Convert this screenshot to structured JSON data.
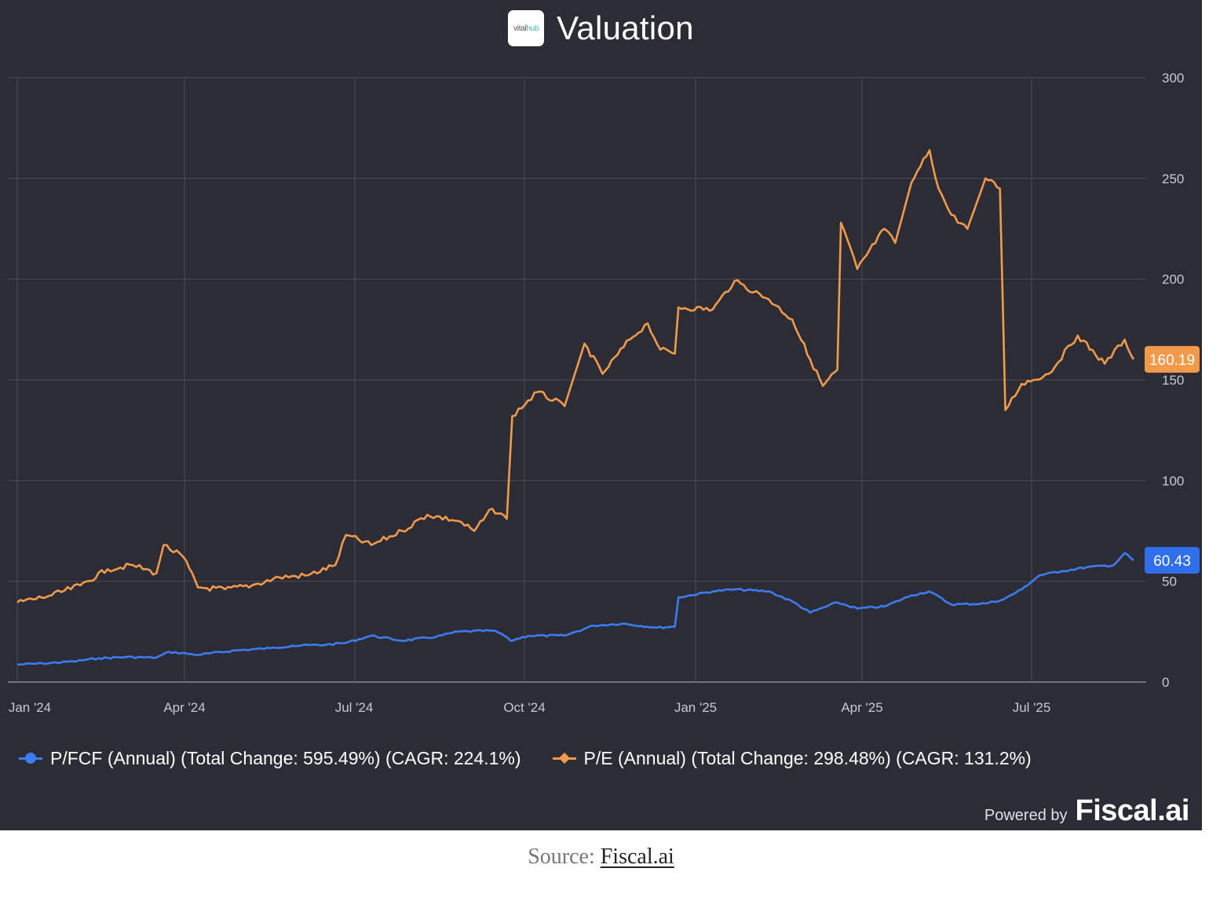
{
  "header": {
    "logo_text_a": "vital",
    "logo_text_b": "hub",
    "title": "Valuation"
  },
  "chart_data": {
    "type": "line",
    "title": "Valuation",
    "x_tick_labels": [
      "Jan '24",
      "Apr '24",
      "Jul '24",
      "Oct '24",
      "Jan '25",
      "Apr '25",
      "Jul '25"
    ],
    "y_tick_labels": [
      "0",
      "50",
      "100",
      "150",
      "200",
      "250",
      "300"
    ],
    "ylim": [
      0,
      300
    ],
    "y_axis_side": "right",
    "grid": true,
    "series": [
      {
        "name": "P/FCF (Annual) (Total Change: 595.49%) (CAGR: 224.1%)",
        "color": "#3d7bf0",
        "marker": "circle",
        "last_value_label": "60.43",
        "points": [
          [
            "2024-01-01",
            8.7
          ],
          [
            "2024-01-15",
            9.2
          ],
          [
            "2024-02-01",
            10.2
          ],
          [
            "2024-02-15",
            11.8
          ],
          [
            "2024-03-01",
            12.4
          ],
          [
            "2024-03-18",
            12.1
          ],
          [
            "2024-03-25",
            15.0
          ],
          [
            "2024-04-10",
            13.5
          ],
          [
            "2024-05-01",
            15.7
          ],
          [
            "2024-05-20",
            16.8
          ],
          [
            "2024-06-01",
            18.0
          ],
          [
            "2024-06-20",
            18.5
          ],
          [
            "2024-07-01",
            19.5
          ],
          [
            "2024-07-15",
            23.0
          ],
          [
            "2024-08-01",
            20.5
          ],
          [
            "2024-08-20",
            22.5
          ],
          [
            "2024-09-01",
            25.0
          ],
          [
            "2024-09-20",
            25.5
          ],
          [
            "2024-09-25",
            24.0
          ],
          [
            "2024-09-30",
            20.5
          ],
          [
            "2024-10-10",
            23.0
          ],
          [
            "2024-10-30",
            23.0
          ],
          [
            "2024-11-15",
            28.0
          ],
          [
            "2024-12-01",
            29.0
          ],
          [
            "2024-12-20",
            27.0
          ],
          [
            "2024-12-30",
            27.5
          ],
          [
            "2025-01-01",
            42.0
          ],
          [
            "2025-01-20",
            45.0
          ],
          [
            "2025-02-01",
            46.0
          ],
          [
            "2025-02-20",
            45.0
          ],
          [
            "2025-03-05",
            40.0
          ],
          [
            "2025-03-15",
            34.5
          ],
          [
            "2025-03-30",
            39.5
          ],
          [
            "2025-04-10",
            36.5
          ],
          [
            "2025-04-25",
            37.5
          ],
          [
            "2025-05-10",
            43.0
          ],
          [
            "2025-05-20",
            45.0
          ],
          [
            "2025-06-01",
            38.5
          ],
          [
            "2025-06-20",
            39.0
          ],
          [
            "2025-06-30",
            41.0
          ],
          [
            "2025-07-10",
            46.0
          ],
          [
            "2025-07-20",
            53.0
          ],
          [
            "2025-08-01",
            55.0
          ],
          [
            "2025-08-15",
            57.0
          ],
          [
            "2025-08-30",
            58.0
          ],
          [
            "2025-09-05",
            64.0
          ],
          [
            "2025-09-10",
            60.43
          ]
        ]
      },
      {
        "name": "P/E (Annual) (Total Change: 298.48%) (CAGR: 131.2%)",
        "color": "#f29a4a",
        "marker": "diamond",
        "last_value_label": "160.19",
        "points": [
          [
            "2024-01-01",
            39.5
          ],
          [
            "2024-01-20",
            43.0
          ],
          [
            "2024-02-05",
            48.0
          ],
          [
            "2024-02-20",
            56.0
          ],
          [
            "2024-03-05",
            58.0
          ],
          [
            "2024-03-18",
            54.0
          ],
          [
            "2024-03-22",
            68.0
          ],
          [
            "2024-04-02",
            62.0
          ],
          [
            "2024-04-10",
            47.0
          ],
          [
            "2024-04-25",
            46.0
          ],
          [
            "2024-05-10",
            48.0
          ],
          [
            "2024-05-25",
            52.0
          ],
          [
            "2024-06-10",
            53.0
          ],
          [
            "2024-06-25",
            58.0
          ],
          [
            "2024-07-01",
            73.0
          ],
          [
            "2024-07-15",
            68.0
          ],
          [
            "2024-08-01",
            75.0
          ],
          [
            "2024-08-15",
            83.0
          ],
          [
            "2024-09-01",
            80.0
          ],
          [
            "2024-09-10",
            75.0
          ],
          [
            "2024-09-20",
            86.0
          ],
          [
            "2024-09-28",
            81.0
          ],
          [
            "2024-10-01",
            132.0
          ],
          [
            "2024-10-15",
            144.0
          ],
          [
            "2024-10-30",
            137.0
          ],
          [
            "2024-11-10",
            168.0
          ],
          [
            "2024-11-20",
            153.0
          ],
          [
            "2024-12-05",
            170.0
          ],
          [
            "2024-12-15",
            178.0
          ],
          [
            "2024-12-22",
            165.0
          ],
          [
            "2024-12-30",
            163.0
          ],
          [
            "2025-01-01",
            186.0
          ],
          [
            "2025-01-20",
            185.0
          ],
          [
            "2025-02-01",
            199.0
          ],
          [
            "2025-02-20",
            190.0
          ],
          [
            "2025-03-05",
            180.0
          ],
          [
            "2025-03-15",
            160.0
          ],
          [
            "2025-03-22",
            147.0
          ],
          [
            "2025-03-30",
            155.0
          ],
          [
            "2025-04-01",
            228.0
          ],
          [
            "2025-04-10",
            205.0
          ],
          [
            "2025-04-25",
            225.0
          ],
          [
            "2025-05-01",
            218.0
          ],
          [
            "2025-05-10",
            248.0
          ],
          [
            "2025-05-20",
            264.0
          ],
          [
            "2025-05-25",
            245.0
          ],
          [
            "2025-06-01",
            232.0
          ],
          [
            "2025-06-10",
            225.0
          ],
          [
            "2025-06-20",
            250.0
          ],
          [
            "2025-06-28",
            245.0
          ],
          [
            "2025-07-01",
            135.0
          ],
          [
            "2025-07-10",
            148.0
          ],
          [
            "2025-07-25",
            153.0
          ],
          [
            "2025-08-10",
            172.0
          ],
          [
            "2025-08-25",
            158.0
          ],
          [
            "2025-09-05",
            170.0
          ],
          [
            "2025-09-10",
            160.19
          ]
        ]
      }
    ]
  },
  "legend": {
    "pfcf": "P/FCF (Annual) (Total Change: 595.49%) (CAGR: 224.1%)",
    "pe": "P/E (Annual) (Total Change: 298.48%) (CAGR: 131.2%)"
  },
  "footer": {
    "powered_by": "Powered by",
    "brand": "Fiscal.ai"
  },
  "source": {
    "prefix": "Source:",
    "link_text": "Fiscal.ai"
  }
}
